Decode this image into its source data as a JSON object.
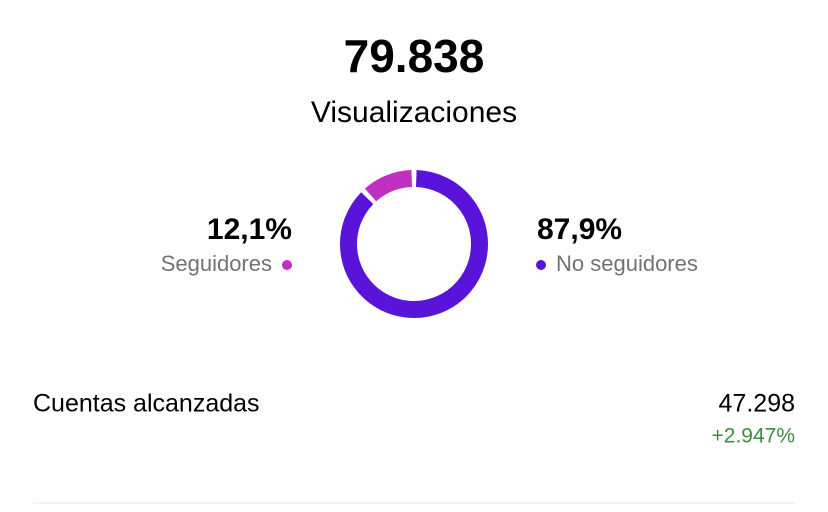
{
  "header": {
    "value": "79.838",
    "label": "Visualizaciones"
  },
  "chart_data": {
    "type": "donut",
    "categories": [
      "Seguidores",
      "No seguidores"
    ],
    "values": [
      12.1,
      87.9
    ],
    "value_labels": [
      "12,1%",
      "87,9%"
    ],
    "colors": [
      "#bf2fc0",
      "#5a13d9"
    ]
  },
  "metrics": [
    {
      "label": "Cuentas alcanzadas",
      "value": "47.298",
      "change": "+2.947%"
    }
  ]
}
